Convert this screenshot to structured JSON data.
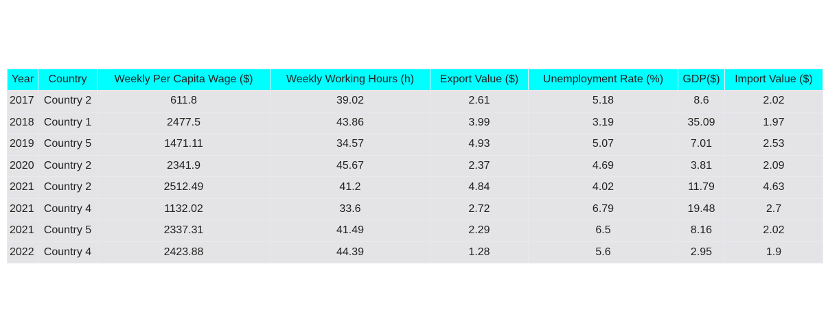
{
  "chart_data": {
    "type": "table",
    "columns": [
      "Year",
      "Country",
      "Weekly Per Capita Wage ($)",
      "Weekly Working Hours (h)",
      "Export Value ($)",
      "Unemployment Rate (%)",
      "GDP($)",
      "Import Value ($)"
    ],
    "rows": [
      [
        "2017",
        "Country 2",
        "611.8",
        "39.02",
        "2.61",
        "5.18",
        "8.6",
        "2.02"
      ],
      [
        "2018",
        "Country 1",
        "2477.5",
        "43.86",
        "3.99",
        "3.19",
        "35.09",
        "1.97"
      ],
      [
        "2019",
        "Country 5",
        "1471.11",
        "34.57",
        "4.93",
        "5.07",
        "7.01",
        "2.53"
      ],
      [
        "2020",
        "Country 2",
        "2341.9",
        "45.67",
        "2.37",
        "4.69",
        "3.81",
        "2.09"
      ],
      [
        "2021",
        "Country 2",
        "2512.49",
        "41.2",
        "4.84",
        "4.02",
        "11.79",
        "4.63"
      ],
      [
        "2021",
        "Country 4",
        "1132.02",
        "33.6",
        "2.72",
        "6.79",
        "19.48",
        "2.7"
      ],
      [
        "2021",
        "Country 5",
        "2337.31",
        "41.49",
        "2.29",
        "6.5",
        "8.16",
        "2.02"
      ],
      [
        "2022",
        "Country 4",
        "2423.88",
        "44.39",
        "1.28",
        "5.6",
        "2.95",
        "1.9"
      ]
    ],
    "colors": {
      "header_background": "#00ffff",
      "cell_background": "#e4e4e6",
      "grid_line": "#e8e8f0",
      "text": "#222222"
    }
  }
}
